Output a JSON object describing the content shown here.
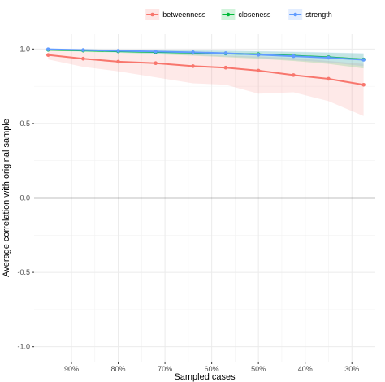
{
  "chart_data": {
    "type": "line",
    "xlabel": "Sampled cases",
    "ylabel": "Average correlation with original sample",
    "x_tick_labels": [
      "90%",
      "80%",
      "70%",
      "60%",
      "50%",
      "40%",
      "30%"
    ],
    "x_ticks": [
      90,
      80,
      70,
      60,
      50,
      40,
      30
    ],
    "y_tick_labels": [
      "-1.0",
      "-0.5",
      "0.0",
      "0.5",
      "1.0"
    ],
    "y_ticks": [
      -1.0,
      -0.5,
      0.0,
      0.5,
      1.0
    ],
    "xlim": [
      98.0,
      25.0
    ],
    "ylim": [
      -1.1,
      1.1
    ],
    "grid": true,
    "reference_line_y": 0.0,
    "legend_position": "top",
    "x": [
      95,
      87.5,
      80,
      72,
      64,
      57,
      50,
      42.5,
      35,
      27.5
    ],
    "series": [
      {
        "name": "betweenness",
        "color": "#F8766D",
        "values": [
          0.96,
          0.935,
          0.915,
          0.905,
          0.885,
          0.875,
          0.855,
          0.825,
          0.8,
          0.76
        ],
        "lower": [
          0.93,
          0.88,
          0.85,
          0.81,
          0.77,
          0.76,
          0.7,
          0.71,
          0.65,
          0.55
        ],
        "upper": [
          0.99,
          0.98,
          0.975,
          0.97,
          0.965,
          0.955,
          0.95,
          0.94,
          0.92,
          0.9
        ]
      },
      {
        "name": "closeness",
        "color": "#00BA38",
        "values": [
          0.995,
          0.99,
          0.985,
          0.98,
          0.975,
          0.97,
          0.965,
          0.955,
          0.945,
          0.93
        ],
        "lower": [
          0.99,
          0.98,
          0.975,
          0.965,
          0.955,
          0.945,
          0.935,
          0.92,
          0.9,
          0.87
        ],
        "upper": [
          1.0,
          0.998,
          0.995,
          0.993,
          0.99,
          0.988,
          0.985,
          0.98,
          0.975,
          0.97
        ]
      },
      {
        "name": "strength",
        "color": "#619CFF",
        "values": [
          0.998,
          0.993,
          0.988,
          0.983,
          0.978,
          0.972,
          0.962,
          0.952,
          0.942,
          0.928
        ],
        "lower": [
          0.995,
          0.985,
          0.978,
          0.97,
          0.96,
          0.95,
          0.94,
          0.925,
          0.91,
          0.885
        ],
        "upper": [
          1.0,
          0.999,
          0.997,
          0.995,
          0.993,
          0.99,
          0.987,
          0.983,
          0.978,
          0.972
        ]
      }
    ]
  }
}
